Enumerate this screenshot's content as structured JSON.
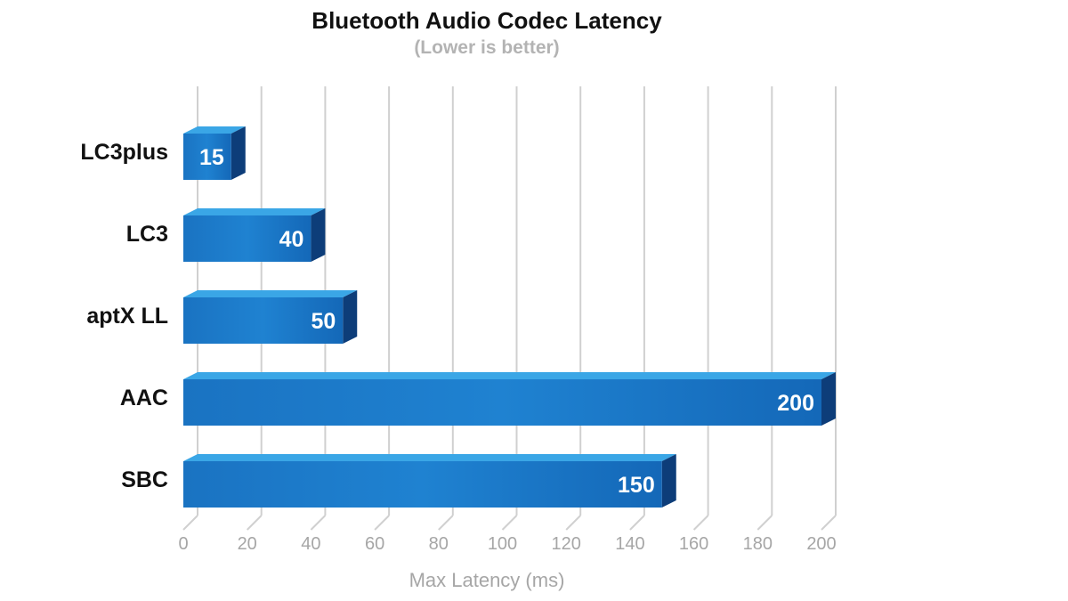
{
  "chart_data": {
    "type": "bar",
    "orientation": "horizontal",
    "title": "Bluetooth Audio Codec Latency",
    "subtitle": "(Lower is better)",
    "xlabel": "Max Latency (ms)",
    "ylabel": "",
    "categories": [
      "LC3plus",
      "LC3",
      "aptX LL",
      "AAC",
      "SBC"
    ],
    "values": [
      15,
      40,
      50,
      200,
      150
    ],
    "xlim": [
      0,
      200
    ],
    "xticks": [
      0,
      20,
      40,
      60,
      80,
      100,
      120,
      140,
      160,
      180,
      200
    ],
    "grid": true,
    "legend": "none",
    "colors": {
      "bar_front": "#1577c7",
      "bar_front_light": "#2a8fd8",
      "bar_top": "#3aa6e6",
      "bar_side": "#0d3d79",
      "grid": "#d0d0d0"
    }
  }
}
